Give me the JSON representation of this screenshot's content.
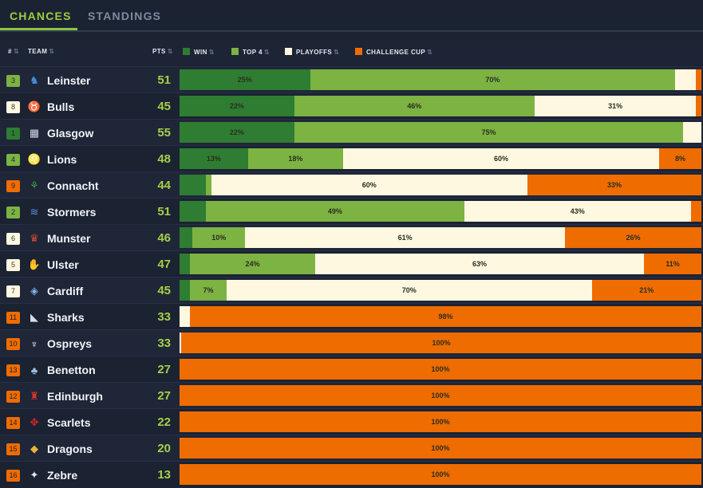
{
  "tabs": [
    {
      "label": "CHANCES",
      "active": true
    },
    {
      "label": "STANDINGS",
      "active": false
    }
  ],
  "columns": {
    "rank": "#",
    "team": "TEAM",
    "pts": "PTS",
    "legend": [
      {
        "label": "WIN",
        "color": "#2e7d32"
      },
      {
        "label": "TOP 4",
        "color": "#7cb342"
      },
      {
        "label": "PLAYOFFS",
        "color": "#fff8e1"
      },
      {
        "label": "CHALLENGE CUP",
        "color": "#ef6c00"
      }
    ],
    "sort_icon": "sort-arrows-icon"
  },
  "colors": {
    "win": "#2e7d32",
    "top4": "#7cb342",
    "playoffs": "#fff8e1",
    "challenge": "#ef6c00",
    "points": "#a4cf48"
  },
  "rows": [
    {
      "rank": "3",
      "rank_color": "#7cb342",
      "team": "Leinster",
      "logo": "leinster-logo-icon",
      "pts": "51",
      "win": 25,
      "top4": 70,
      "playoffs": 4,
      "challenge": 1,
      "labels": {
        "win": "25%",
        "top4": "70%",
        "playoffs": "",
        "challenge": ""
      }
    },
    {
      "rank": "8",
      "rank_color": "#fff8e1",
      "team": "Bulls",
      "logo": "bulls-logo-icon",
      "pts": "45",
      "win": 22,
      "top4": 46,
      "playoffs": 31,
      "challenge": 1,
      "labels": {
        "win": "22%",
        "top4": "46%",
        "playoffs": "31%",
        "challenge": ""
      }
    },
    {
      "rank": "1",
      "rank_color": "#2e7d32",
      "team": "Glasgow",
      "logo": "glasgow-logo-icon",
      "pts": "55",
      "win": 22,
      "top4": 74.5,
      "playoffs": 3.5,
      "challenge": 0,
      "labels": {
        "win": "22%",
        "top4": "75%",
        "playoffs": "",
        "challenge": ""
      }
    },
    {
      "rank": "4",
      "rank_color": "#7cb342",
      "team": "Lions",
      "logo": "lions-logo-icon",
      "pts": "48",
      "win": 13,
      "top4": 18,
      "playoffs": 60,
      "challenge": 8,
      "labels": {
        "win": "13%",
        "top4": "18%",
        "playoffs": "60%",
        "challenge": "8%"
      }
    },
    {
      "rank": "9",
      "rank_color": "#ef6c00",
      "team": "Connacht",
      "logo": "connacht-logo-icon",
      "pts": "44",
      "win": 5,
      "top4": 1,
      "playoffs": 60,
      "challenge": 33,
      "labels": {
        "win": "",
        "top4": "",
        "playoffs": "60%",
        "challenge": "33%"
      }
    },
    {
      "rank": "2",
      "rank_color": "#7cb342",
      "team": "Stormers",
      "logo": "stormers-logo-icon",
      "pts": "51",
      "win": 5,
      "top4": 49,
      "playoffs": 43,
      "challenge": 2,
      "labels": {
        "win": "",
        "top4": "49%",
        "playoffs": "43%",
        "challenge": ""
      }
    },
    {
      "rank": "6",
      "rank_color": "#fff8e1",
      "team": "Munster",
      "logo": "munster-logo-icon",
      "pts": "46",
      "win": 2.5,
      "top4": 10,
      "playoffs": 61,
      "challenge": 26,
      "labels": {
        "win": "",
        "top4": "10%",
        "playoffs": "61%",
        "challenge": "26%"
      }
    },
    {
      "rank": "5",
      "rank_color": "#fff8e1",
      "team": "Ulster",
      "logo": "ulster-logo-icon",
      "pts": "47",
      "win": 2,
      "top4": 24,
      "playoffs": 63,
      "challenge": 11,
      "labels": {
        "win": "",
        "top4": "24%",
        "playoffs": "63%",
        "challenge": "11%"
      }
    },
    {
      "rank": "7",
      "rank_color": "#fff8e1",
      "team": "Cardiff",
      "logo": "cardiff-logo-icon",
      "pts": "45",
      "win": 2,
      "top4": 7,
      "playoffs": 70,
      "challenge": 21,
      "labels": {
        "win": "",
        "top4": "7%",
        "playoffs": "70%",
        "challenge": "21%"
      }
    },
    {
      "rank": "11",
      "rank_color": "#ef6c00",
      "team": "Sharks",
      "logo": "sharks-logo-icon",
      "pts": "33",
      "win": 0,
      "top4": 0,
      "playoffs": 2,
      "challenge": 98,
      "labels": {
        "win": "",
        "top4": "",
        "playoffs": "",
        "challenge": "98%"
      }
    },
    {
      "rank": "10",
      "rank_color": "#ef6c00",
      "team": "Ospreys",
      "logo": "ospreys-logo-icon",
      "pts": "33",
      "win": 0,
      "top4": 0,
      "playoffs": 0.3,
      "challenge": 100,
      "labels": {
        "win": "",
        "top4": "",
        "playoffs": "",
        "challenge": "100%"
      }
    },
    {
      "rank": "13",
      "rank_color": "#ef6c00",
      "team": "Benetton",
      "logo": "benetton-logo-icon",
      "pts": "27",
      "win": 0,
      "top4": 0,
      "playoffs": 0,
      "challenge": 100,
      "labels": {
        "win": "",
        "top4": "",
        "playoffs": "",
        "challenge": "100%"
      }
    },
    {
      "rank": "12",
      "rank_color": "#ef6c00",
      "team": "Edinburgh",
      "logo": "edinburgh-logo-icon",
      "pts": "27",
      "win": 0,
      "top4": 0,
      "playoffs": 0,
      "challenge": 100,
      "labels": {
        "win": "",
        "top4": "",
        "playoffs": "",
        "challenge": "100%"
      }
    },
    {
      "rank": "14",
      "rank_color": "#ef6c00",
      "team": "Scarlets",
      "logo": "scarlets-logo-icon",
      "pts": "22",
      "win": 0,
      "top4": 0,
      "playoffs": 0,
      "challenge": 100,
      "labels": {
        "win": "",
        "top4": "",
        "playoffs": "",
        "challenge": "100%"
      }
    },
    {
      "rank": "15",
      "rank_color": "#ef6c00",
      "team": "Dragons",
      "logo": "dragons-logo-icon",
      "pts": "20",
      "win": 0,
      "top4": 0,
      "playoffs": 0,
      "challenge": 100,
      "labels": {
        "win": "",
        "top4": "",
        "playoffs": "",
        "challenge": "100%"
      }
    },
    {
      "rank": "16",
      "rank_color": "#ef6c00",
      "team": "Zebre",
      "logo": "zebre-logo-icon",
      "pts": "13",
      "win": 0,
      "top4": 0,
      "playoffs": 0,
      "challenge": 100,
      "labels": {
        "win": "",
        "top4": "",
        "playoffs": "",
        "challenge": "100%"
      }
    }
  ]
}
